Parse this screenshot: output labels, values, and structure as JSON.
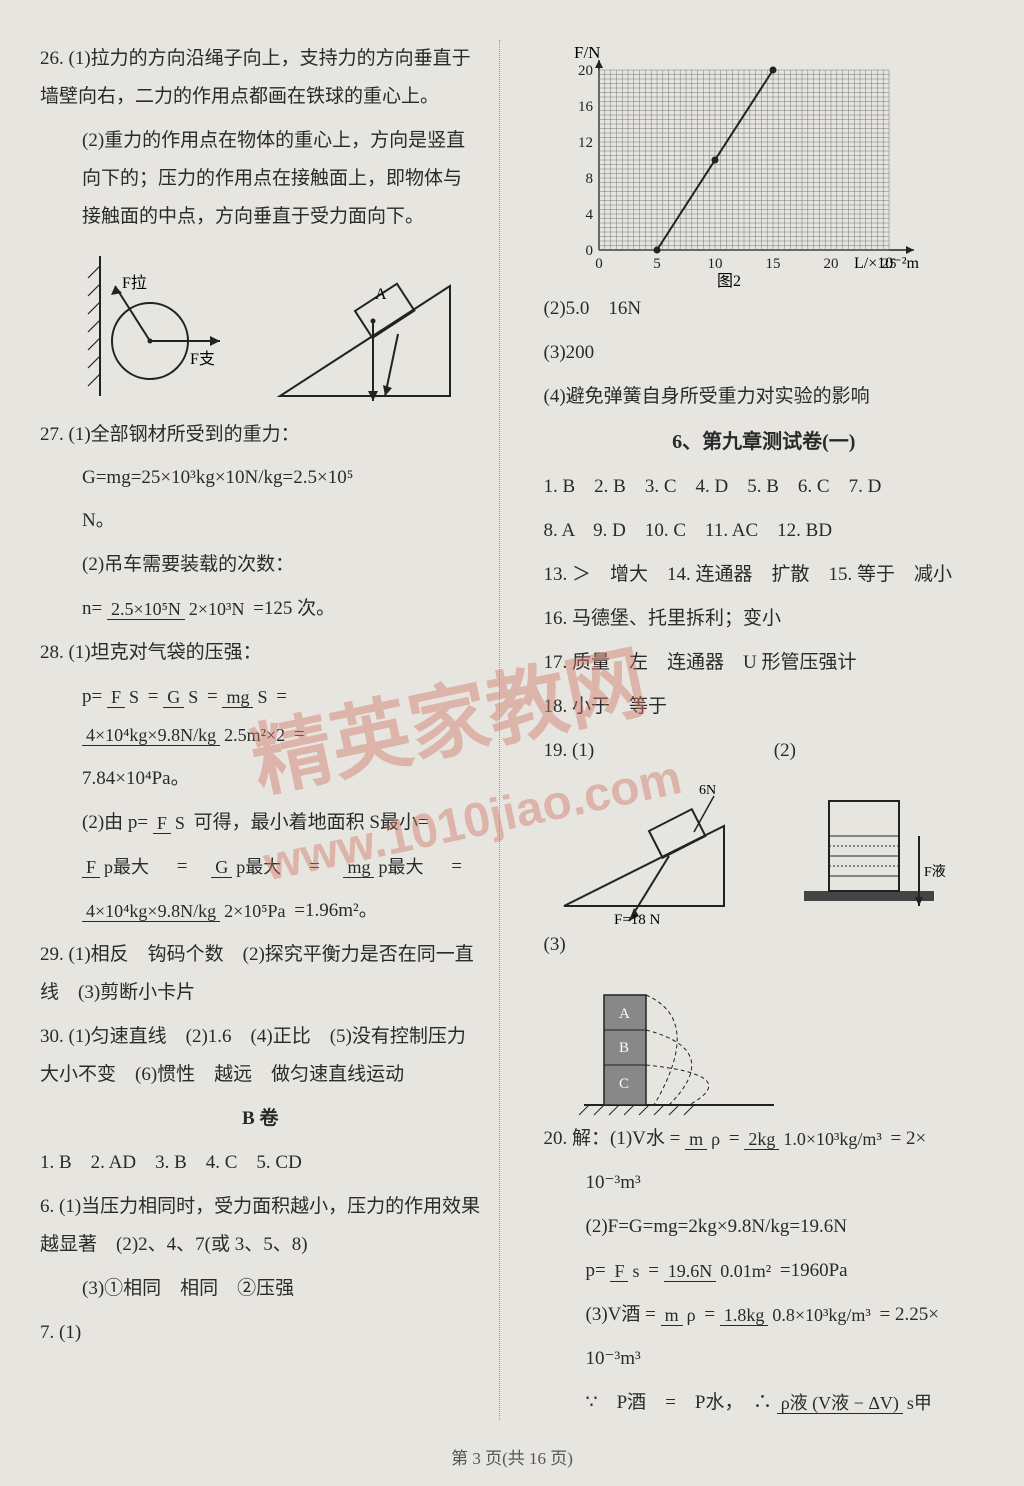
{
  "left": {
    "q26_1": "26. (1)拉力的方向沿绳子向上，支持力的方向垂直于墙壁向右，二力的作用点都画在铁球的重心上。",
    "q26_2": "(2)重力的作用点在物体的重心上，方向是竖直向下的；压力的作用点在接触面上，即物体与接触面的中点，方向垂直于受力面向下。",
    "diag1_Fla": "F拉",
    "diag1_Fzhi": "F支",
    "diag1_A": "A",
    "q27_1a": "27. (1)全部钢材所受到的重力：",
    "q27_1b_pre": "G=mg=25×10³kg×10N/kg=2.5×10⁵",
    "q27_1b_unit": "N。",
    "q27_2a": "(2)吊车需要装载的次数：",
    "q27_2_frac_top": "2.5×10⁵N",
    "q27_2_frac_bot": "2×10³N",
    "q27_2_eq_pre": "n=",
    "q27_2_eq_post": "=125 次。",
    "q28_1a": "28. (1)坦克对气袋的压强：",
    "q28_p": "p=",
    "q28_f1t": "F",
    "q28_f1b": "S",
    "q28_f2t": "G",
    "q28_f2b": "S",
    "q28_f3t": "mg",
    "q28_f3b": "S",
    "q28_f4t": "4×10⁴kg×9.8N/kg",
    "q28_f4b": "2.5m²×2",
    "q28_eq": "=",
    "q28_1res": "7.84×10⁴Pa。",
    "q28_2a": "(2)由 p=",
    "q28_2a_ft": "F",
    "q28_2a_fb": "S",
    "q28_2a_post": "可得，最小着地面积 S最小=",
    "q28_2_f1t": "F",
    "q28_2_f1b": "p最大",
    "q28_2_f2t": "G",
    "q28_2_f2b": "p最大",
    "q28_2_f3t": "mg",
    "q28_2_f3b": "p最大",
    "q28_2_f4t": "4×10⁴kg×9.8N/kg",
    "q28_2_f4b": "2×10⁵Pa",
    "q28_2_res": "=1.96m²。",
    "q29": "29. (1)相反　钩码个数　(2)探究平衡力是否在同一直线　(3)剪断小卡片",
    "q30": "30. (1)匀速直线　(2)1.6　(4)正比　(5)没有控制压力大小不变　(6)惯性　越远　做匀速直线运动",
    "b_title": "B 卷",
    "b_row1": "1. B　2. AD　3. B　4. C　5. CD",
    "b_q6": "6. (1)当压力相同时，受力面积越小，压力的作用效果越显著　(2)2、4、7(或 3、5、8)",
    "b_q6_3": "(3)①相同　相同　②压强",
    "b_q7": "7. (1)"
  },
  "right": {
    "chart": {
      "ylabel": "F/N",
      "xlabel": "L/×10⁻²m",
      "caption": "图2",
      "yticks": [
        0,
        4,
        8,
        12,
        16,
        20
      ],
      "xticks": [
        0,
        5,
        10,
        15,
        20,
        25
      ],
      "points": [
        [
          5,
          0
        ],
        [
          10,
          10
        ],
        [
          15,
          20
        ]
      ],
      "grid_color": "#555",
      "line_color": "#222",
      "bg": "#e7e5e0"
    },
    "q2": "(2)5.0　16N",
    "q3": "(3)200",
    "q4": "(4)避免弹簧自身所受重力对实验的影响",
    "ch9_title": "6、第九章测试卷(一)",
    "mc1": "1. B　2. B　3. C　4. D　5. B　6. C　7. D",
    "mc2": "8. A　9. D　10. C　11. AC　12. BD",
    "q13": "13. ＞　增大　14. 连通器　扩散　15. 等于　减小",
    "q16": "16. 马德堡、托里拆利；变小",
    "q17": "17. 质量　左　连通器　U 形管压强计",
    "q18": "18. 小于　等于",
    "q19": "19. (1)",
    "q19_2": "(2)",
    "diag_6n": "6N",
    "diag_F18": "F=18 N",
    "diag_Fye": "F液",
    "q19_3": "(3)",
    "diag3_A": "A",
    "diag3_B": "B",
    "diag3_C": "C",
    "q20_pre": "20. 解：(1)V水 =",
    "q20_f1t": "m",
    "q20_f1b": "ρ",
    "q20_f2t": "2kg",
    "q20_f2b": "1.0×10³kg/m³",
    "q20_eq": "= 2×",
    "q20_unit1": "10⁻³m³",
    "q20_2": "(2)F=G=mg=2kg×9.8N/kg=19.6N",
    "q20_2p_pre": "p=",
    "q20_2p_f1t": "F",
    "q20_2p_f1b": "s",
    "q20_2p_f2t": "19.6N",
    "q20_2p_f2b": "0.01m²",
    "q20_2p_res": "=1960Pa",
    "q20_3_pre": "(3)V酒 =",
    "q20_3_f1t": "m",
    "q20_3_f1b": "ρ",
    "q20_3_f2t": "1.8kg",
    "q20_3_f2b": "0.8×10³kg/m³",
    "q20_3_res": "= 2.25×",
    "q20_3_unit": "10⁻³m³",
    "q20_4a": "∵　P酒　=　P水，　∴",
    "q20_4_ft": "ρ液 (V液 − ΔV)",
    "q20_4_fb": "s甲"
  },
  "footer": "第 3 页(共 16 页)",
  "watermark": {
    "line1": "精英家教网",
    "line2": "www.1010jiao.com"
  },
  "colors": {
    "text": "#2a2a2a",
    "bg": "#e7e5e0",
    "wm": "#d17a6a"
  }
}
